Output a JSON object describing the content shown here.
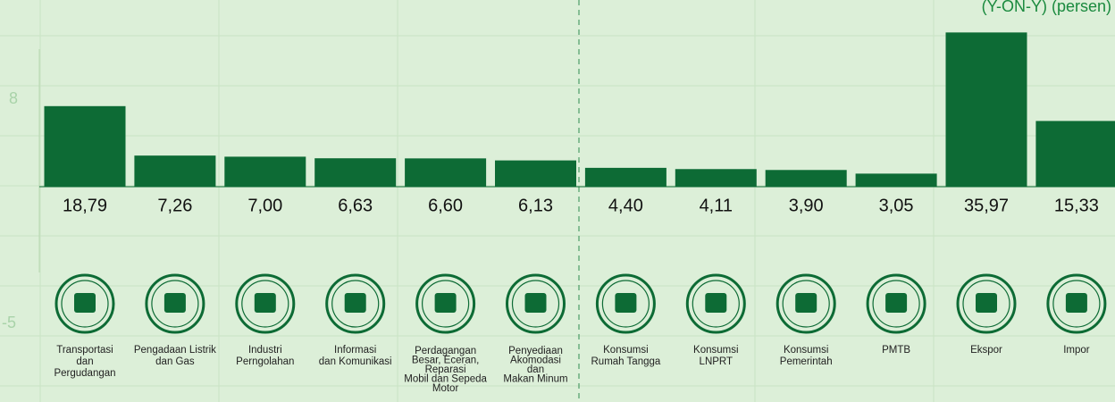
{
  "chart_data": {
    "type": "bar",
    "subtitle": "(Y-ON-Y) (persen)",
    "categories": [
      [
        "Transportasi",
        "dan",
        "Pergudangan"
      ],
      [
        "Pengadaan Listrik",
        "dan Gas"
      ],
      [
        "Industri",
        "Perngolahan"
      ],
      [
        "Informasi",
        "dan Komunikasi"
      ],
      [
        "Perdagangan",
        "Besar, Eceran,",
        "Reparasi",
        "Mobil dan Sepeda",
        "Motor"
      ],
      [
        "Penyediaan",
        "Akomodasi",
        "dan",
        "Makan Minum"
      ],
      [
        "Konsumsi",
        "Rumah Tangga"
      ],
      [
        "Konsumsi",
        "LNPRT"
      ],
      [
        "Konsumsi",
        "Pemerintah"
      ],
      [
        "PMTB"
      ],
      [
        "Ekspor"
      ],
      [
        "Impor"
      ]
    ],
    "values": [
      18.79,
      7.26,
      7.0,
      6.63,
      6.6,
      6.13,
      4.4,
      4.11,
      3.9,
      3.05,
      35.97,
      15.33
    ],
    "value_labels": [
      "18,79",
      "7,26",
      "7,00",
      "6,63",
      "6,60",
      "6,13",
      "4,40",
      "4,11",
      "3,90",
      "3,05",
      "35,97",
      "15,33"
    ],
    "color": "#0d6b35",
    "ylim": [
      0,
      40
    ],
    "background_labels": [
      8,
      -5
    ]
  }
}
